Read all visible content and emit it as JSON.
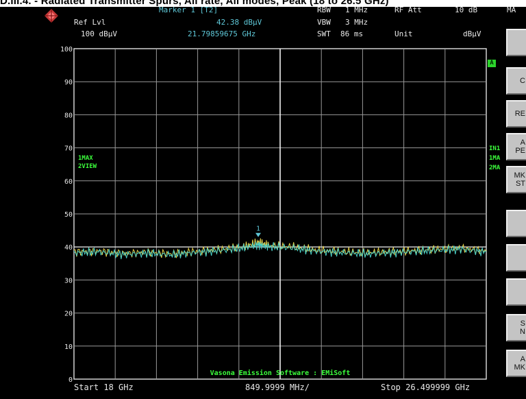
{
  "caption": "D.III.4. - Radiated Transmitter Spurs, All rate, All modes, Peak (18 to 26.5 GHz)",
  "header": {
    "ref_lvl_label": "Ref Lvl",
    "ref_lvl_value": "100 dBμV",
    "marker_label": "Marker 1 [T2]",
    "marker_level": "42.38 dBμV",
    "marker_freq": "21.79859675 GHz",
    "rbw_label": "RBW",
    "rbw_value": "1 MHz",
    "vbw_label": "VBW",
    "vbw_value": "3 MHz",
    "swt_label": "SWT",
    "swt_value": "86 ms",
    "rfatt_label": "RF Att",
    "rfatt_value": "10 dB",
    "unit_label": "Unit",
    "unit_value": "dBμV",
    "menu_label": "MA"
  },
  "left_labels": {
    "trace1": "1MAX",
    "trace2": "2VIEW"
  },
  "right_labels": {
    "in1": "IN1",
    "ma1": "1MA",
    "ma2": "2MA",
    "a_badge": "A"
  },
  "softkeys": [
    {
      "l1": "",
      "l2": ""
    },
    {
      "l1": "C",
      "l2": ""
    },
    {
      "l1": "RE",
      "l2": ""
    },
    {
      "l1": "A",
      "l2": "PE"
    },
    {
      "l1": "MK",
      "l2": "ST"
    },
    {
      "l1": "",
      "l2": ""
    },
    {
      "l1": "",
      "l2": ""
    },
    {
      "l1": "",
      "l2": ""
    },
    {
      "l1": "S",
      "l2": "N"
    },
    {
      "l1": "A",
      "l2": "MK"
    }
  ],
  "footer": {
    "start": "Start 18 GHz",
    "span": "849.9999 MHz/",
    "stop": "Stop 26.499999 GHz",
    "watermark": "Vasona Emission Software : EMiSoft"
  },
  "chart_data": {
    "type": "line",
    "x_unit": "GHz",
    "y_unit": "dBμV",
    "xlim": [
      18,
      26.499999
    ],
    "ylim": [
      0,
      100
    ],
    "y_ticks": [
      "100",
      "90",
      "80",
      "70",
      "60",
      "50",
      "40",
      "30",
      "20",
      "10",
      "0"
    ],
    "grid": true,
    "reference_line": 40,
    "marker": {
      "label": "1",
      "x": 21.7986,
      "y": 42.38
    },
    "series": [
      {
        "name": "1MAX",
        "color": "#e8d44c",
        "x": [
          18.0,
          18.5,
          19.0,
          19.5,
          20.0,
          20.5,
          21.0,
          21.5,
          21.8,
          22.0,
          22.5,
          23.0,
          23.5,
          24.0,
          24.5,
          25.0,
          25.5,
          26.0,
          26.5
        ],
        "values": [
          38.5,
          38.8,
          38.0,
          38.4,
          37.9,
          38.6,
          39.2,
          40.0,
          41.5,
          40.4,
          40.0,
          39.0,
          38.6,
          38.2,
          38.5,
          38.9,
          39.3,
          39.6,
          38.7
        ]
      },
      {
        "name": "2VIEW",
        "color": "#4ad0c8",
        "x": [
          18.0,
          18.5,
          19.0,
          19.5,
          20.0,
          20.5,
          21.0,
          21.5,
          21.8,
          22.0,
          22.5,
          23.0,
          23.5,
          24.0,
          24.5,
          25.0,
          25.5,
          26.0,
          26.5
        ],
        "values": [
          38.2,
          38.5,
          37.7,
          38.1,
          37.6,
          38.3,
          38.9,
          39.7,
          40.6,
          40.1,
          39.7,
          38.7,
          38.3,
          37.9,
          38.2,
          38.6,
          39.0,
          39.3,
          38.4
        ]
      }
    ]
  }
}
